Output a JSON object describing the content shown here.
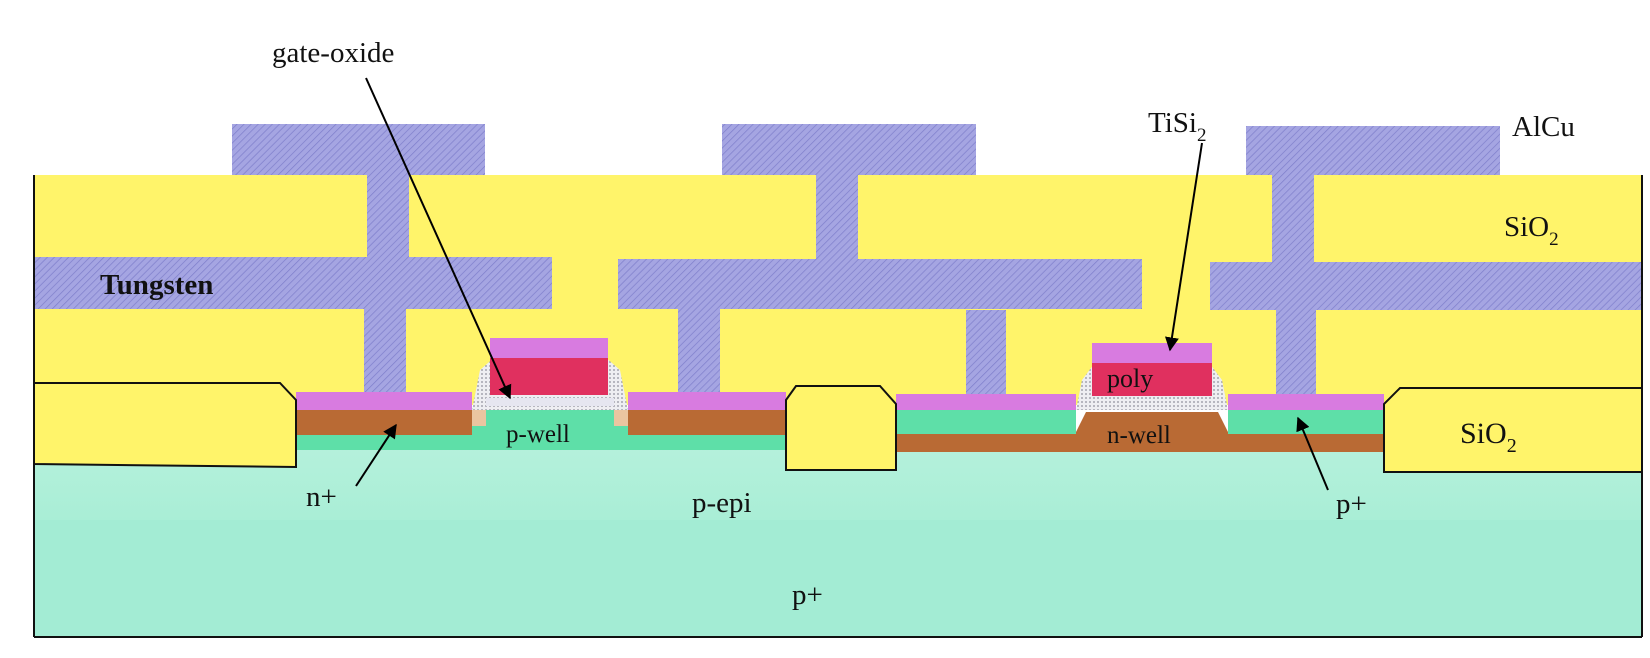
{
  "diagram": {
    "labels": {
      "gate_oxide": "gate-oxide",
      "tisi_main": "TiSi",
      "tisi_sub": "2",
      "alcu": "AlCu",
      "sio2_top_main": "SiO",
      "sio2_top_sub": "2",
      "tungsten": "Tungsten",
      "poly": "poly",
      "p_well": "p-well",
      "n_well": "n-well",
      "sio2_right_main": "SiO",
      "sio2_right_sub": "2",
      "n_plus": "n+",
      "p_epi": "p-epi",
      "p_plus_right": "p+",
      "p_plus_substrate": "p+"
    },
    "colors": {
      "oxide_yellow": "#FFF46A",
      "metal_lavender": "#9B9BDD",
      "tisi_pink": "#D87BE0",
      "poly_red": "#E0305F",
      "n_plus_brown": "#B96A34",
      "p_diffusion_green": "#5EDFA8",
      "epi_light": "#B3F0DA",
      "substrate": "#A3ECD4",
      "spacer_dots": "#E8E8EE",
      "outline": "#111111"
    }
  }
}
